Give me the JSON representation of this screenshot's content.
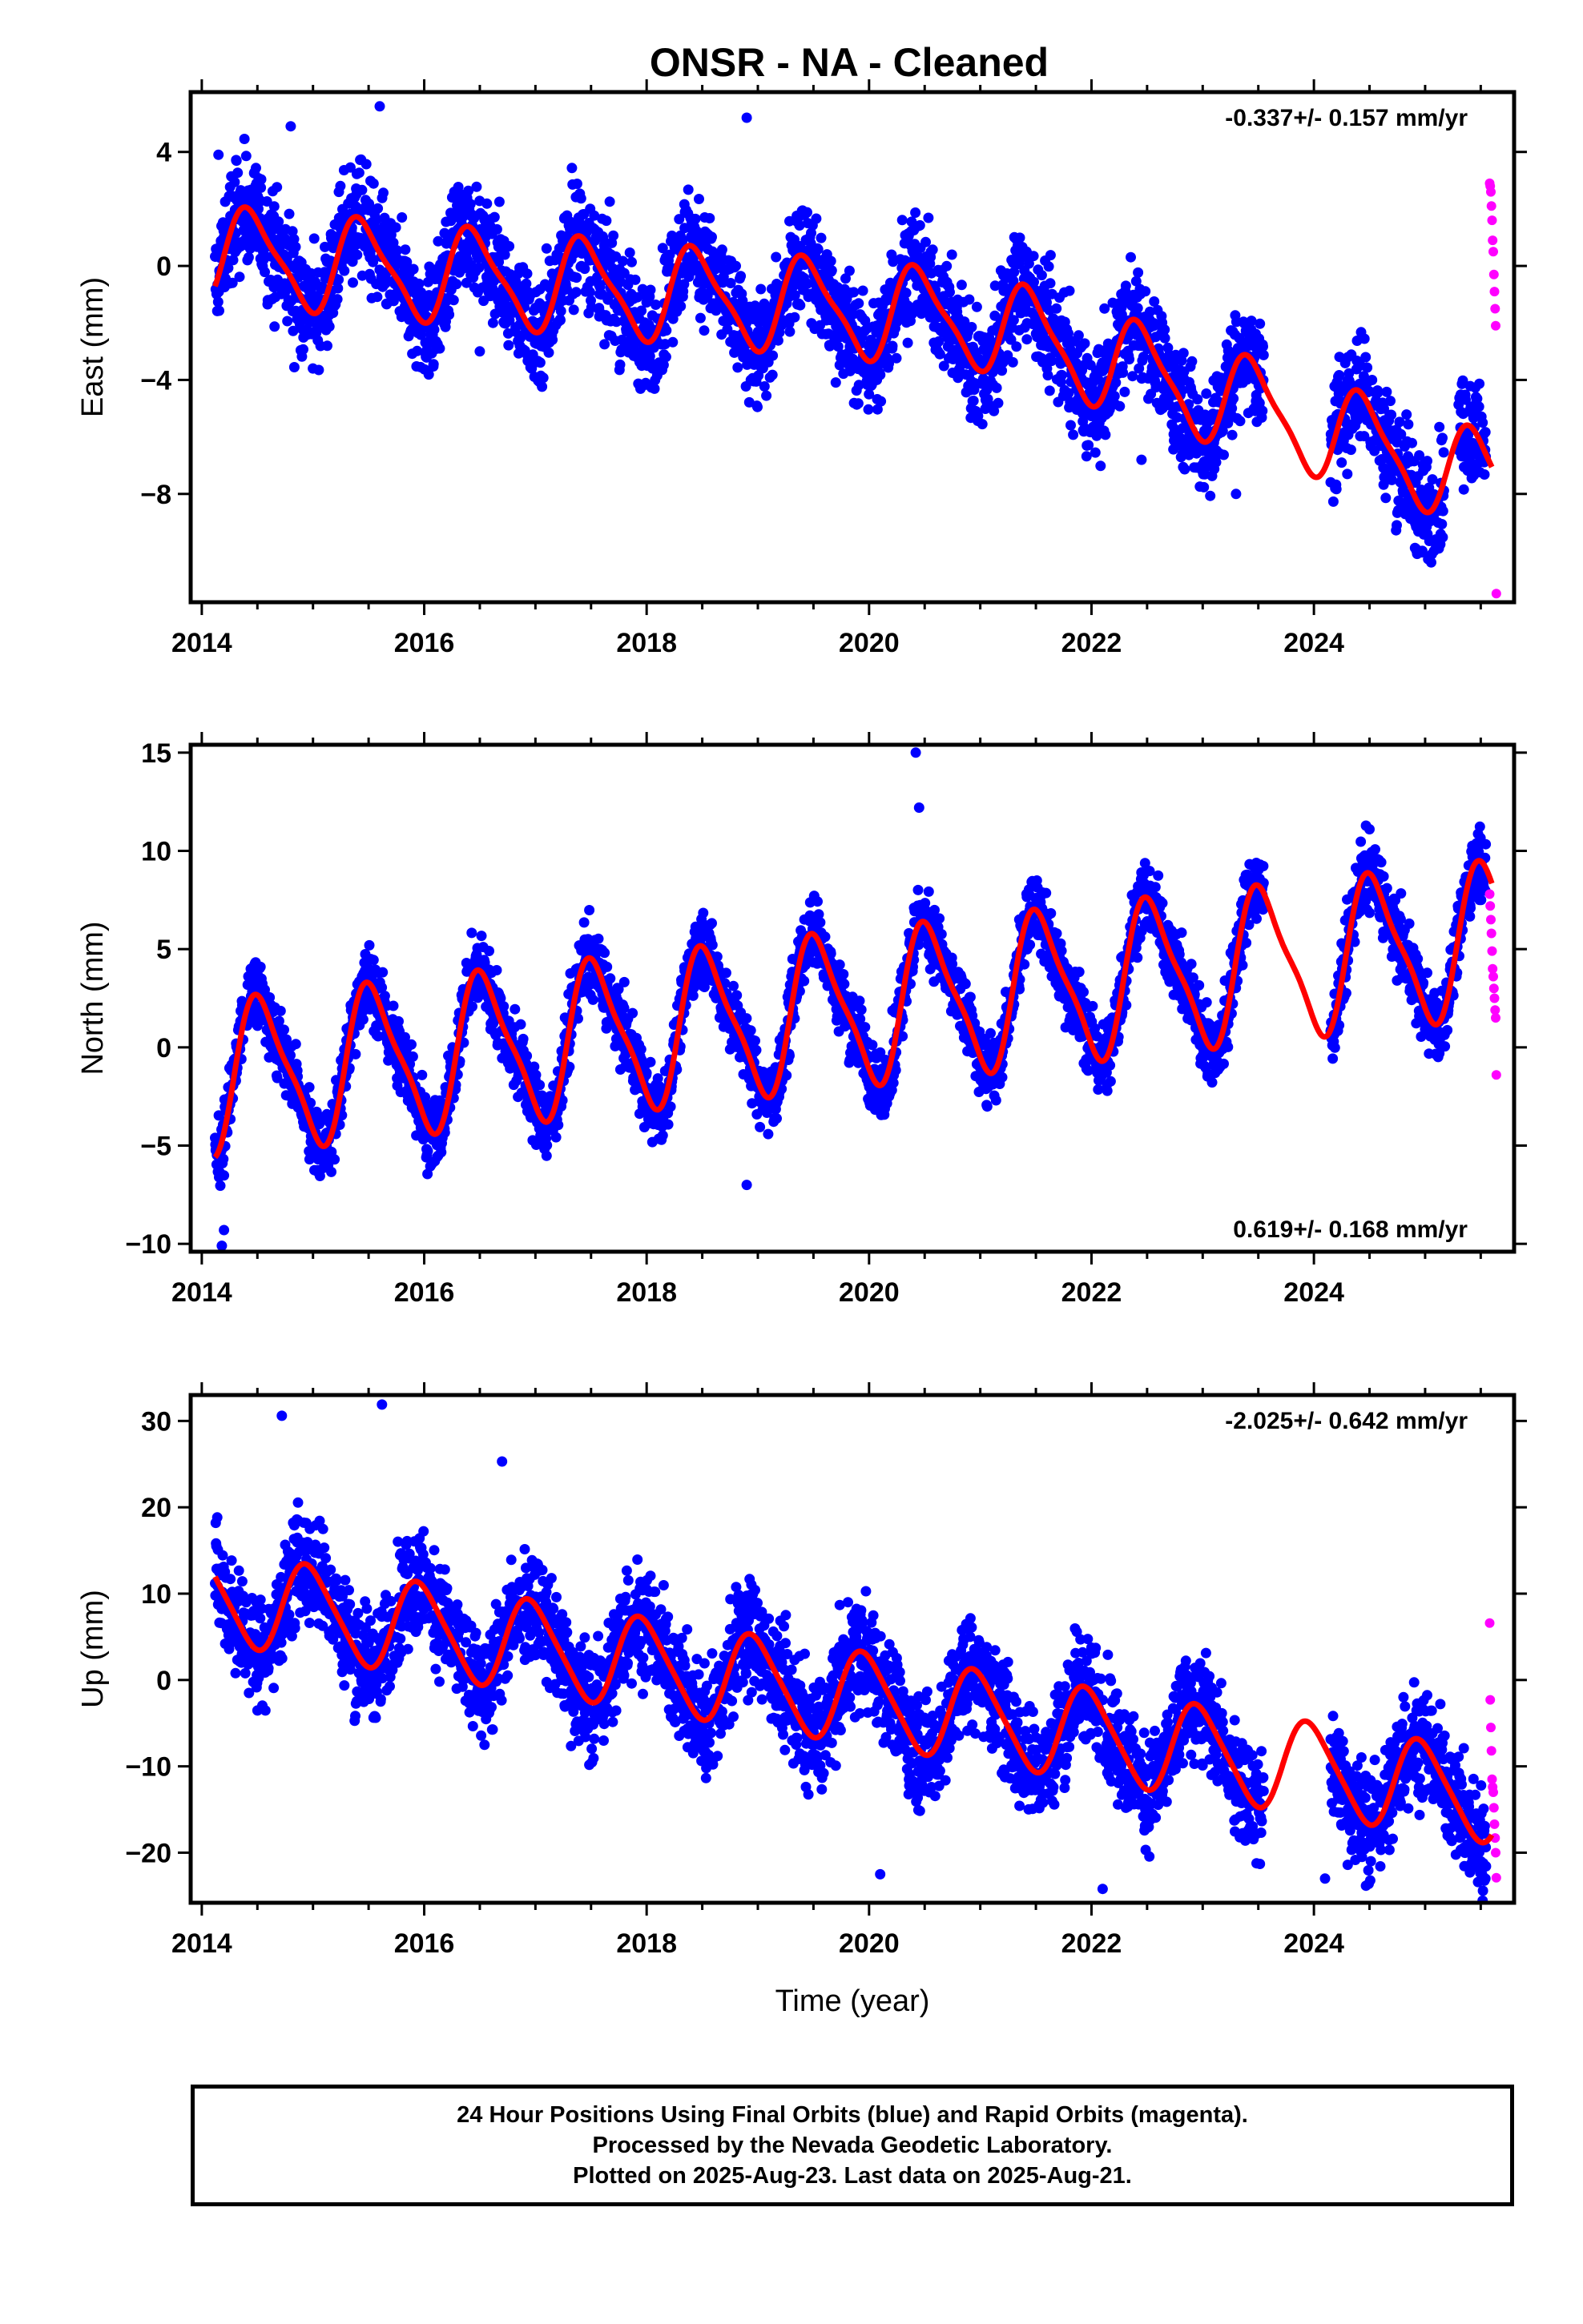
{
  "title": "ONSR  - NA - Cleaned",
  "footer": {
    "line1": "24 Hour Positions Using Final Orbits (blue) and Rapid Orbits (magenta).",
    "line2": "Processed by the Nevada Geodetic Laboratory.",
    "line3": "Plotted on 2025-Aug-23. Last data on 2025-Aug-21."
  },
  "colors": {
    "final": "#0000ff",
    "rapid": "#ff00ff",
    "model": "#ff0000",
    "axis": "#000000"
  },
  "chart_data": [
    {
      "type": "scatter",
      "name": "east-panel",
      "ylabel": "East (mm)",
      "xlabel": "",
      "rate": "-0.337+/- 0.157 mm/yr",
      "rate_position": "top-right",
      "xlim": [
        2013.9,
        2025.8
      ],
      "ylim": [
        -11.8,
        6.1
      ],
      "xticks": [
        2014,
        2016,
        2018,
        2020,
        2022,
        2024
      ],
      "yticks": [
        4,
        0,
        -4,
        -8
      ],
      "model": {
        "offset": 0.4,
        "trend": -0.337,
        "amp1": 1.6,
        "phase1": 0.2,
        "amp2": 0.4,
        "kinks": [
          {
            "t": 2021.0,
            "slope": -0.9
          }
        ]
      },
      "series": [
        {
          "name": "Final Orbits (blue)",
          "x_range": [
            2014.12,
            2025.55
          ],
          "spread": 1.4,
          "gaps": [
            [
              2023.55,
              2024.15
            ],
            [
              2025.17,
              2025.3
            ]
          ],
          "sample_points": [
            [
              2014.15,
              3.9
            ],
            [
              2014.8,
              4.9
            ],
            [
              2015.6,
              5.6
            ],
            [
              2016.5,
              -3.0
            ],
            [
              2018.9,
              5.2
            ],
            [
              2019.05,
              -3.4
            ],
            [
              2022.45,
              -6.8
            ],
            [
              2023.3,
              -8.0
            ],
            [
              2024.3,
              -7.3
            ]
          ]
        },
        {
          "name": "Rapid Orbits (magenta)",
          "x_range": [
            2025.58,
            2025.64
          ],
          "values": [
            2.9,
            2.8,
            2.6,
            2.1,
            1.6,
            0.9,
            0.5,
            -0.3,
            -0.9,
            -1.5,
            -2.1,
            -11.5
          ]
        }
      ]
    },
    {
      "type": "scatter",
      "name": "north-panel",
      "ylabel": "North (mm)",
      "xlabel": "",
      "rate": "0.619+/- 0.168 mm/yr",
      "rate_position": "bottom-right",
      "xlim": [
        2013.9,
        2025.8
      ],
      "ylim": [
        -10.4,
        15.4
      ],
      "xticks": [
        2014,
        2016,
        2018,
        2020,
        2022,
        2024
      ],
      "yticks": [
        15,
        10,
        5,
        0,
        -5,
        -10
      ],
      "model": {
        "offset": -1.6,
        "trend": 0.619,
        "amp1": 3.7,
        "phase1": 0.29,
        "amp2": 0.9
      },
      "series": [
        {
          "name": "Final Orbits (blue)",
          "x_range": [
            2014.12,
            2025.55
          ],
          "spread": 1.3,
          "gaps": [
            [
              2023.55,
              2024.15
            ]
          ],
          "sample_points": [
            [
              2014.18,
              -10.1
            ],
            [
              2014.2,
              -9.3
            ],
            [
              2020.42,
              15.0
            ],
            [
              2020.45,
              12.2
            ],
            [
              2024.5,
              11.1
            ],
            [
              2018.9,
              -7.0
            ]
          ]
        },
        {
          "name": "Rapid Orbits (magenta)",
          "x_range": [
            2025.58,
            2025.64
          ],
          "values": [
            7.8,
            7.2,
            6.5,
            5.8,
            4.9,
            4.0,
            3.6,
            3.0,
            2.5,
            1.9,
            1.5,
            -1.4
          ]
        }
      ]
    },
    {
      "type": "scatter",
      "name": "up-panel",
      "ylabel": "Up (mm)",
      "xlabel": "Time (year)",
      "rate": "-2.025+/- 0.642 mm/yr",
      "rate_position": "top-right",
      "xlim": [
        2013.9,
        2025.8
      ],
      "ylim": [
        -25.8,
        33.0
      ],
      "xticks": [
        2014,
        2016,
        2018,
        2020,
        2022,
        2024
      ],
      "yticks": [
        30,
        20,
        10,
        0,
        -10,
        -20
      ],
      "model": {
        "offset": 9.7,
        "trend": -2.025,
        "amp1": 5.2,
        "phase1": 0.72,
        "amp2": 0.8
      },
      "series": [
        {
          "name": "Final Orbits (blue)",
          "x_range": [
            2014.12,
            2025.55
          ],
          "spread": 4.6,
          "gaps": [
            [
              2023.55,
              2024.15
            ]
          ],
          "sample_points": [
            [
              2014.72,
              30.6
            ],
            [
              2015.62,
              31.9
            ],
            [
              2016.7,
              25.3
            ],
            [
              2020.1,
              -22.5
            ],
            [
              2022.1,
              -24.2
            ],
            [
              2024.1,
              -23.0
            ]
          ]
        },
        {
          "name": "Rapid Orbits (magenta)",
          "x_range": [
            2025.58,
            2025.64
          ],
          "values": [
            6.6,
            -2.3,
            -5.5,
            -8.2,
            -11.5,
            -12.4,
            -13.0,
            -14.8,
            -16.7,
            -18.3,
            -20.0,
            -22.9
          ]
        }
      ]
    }
  ]
}
